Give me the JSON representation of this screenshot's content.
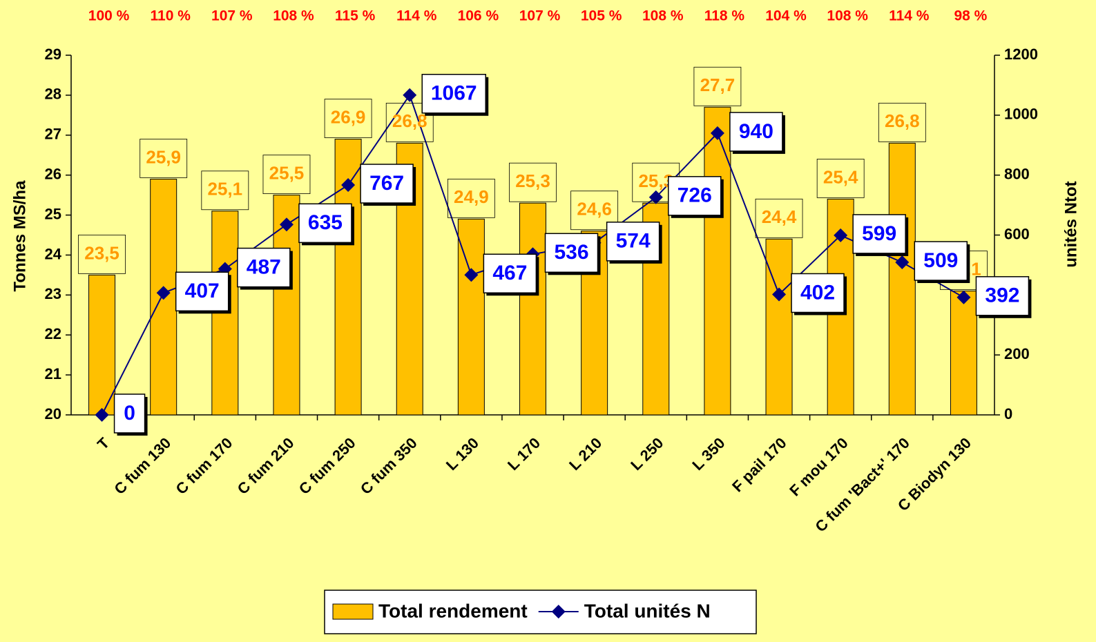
{
  "chart_data": {
    "type": "bar",
    "annotations": [
      "100 %",
      "110 %",
      "107 %",
      "108 %",
      "115 %",
      "114 %",
      "106 %",
      "107 %",
      "105 %",
      "108 %",
      "118 %",
      "104 %",
      "108 %",
      "114 %",
      "98 %"
    ],
    "y_label": "Tonnes MS/ha",
    "y2_label": "unités Ntot",
    "categories": [
      "T",
      "C fum 130",
      "C fum 170",
      "C fum 210",
      "C fum 250",
      "C fum 350",
      "L 130",
      "L 170",
      "L 210",
      "L 250",
      "L 350",
      "F pail 170",
      "F mou 170",
      "C fum 'Bact+' 170",
      "C Biodyn 130"
    ],
    "series": [
      {
        "name": "Total rendement",
        "type": "bar",
        "color": "#ffc000",
        "values": [
          23.5,
          25.9,
          25.1,
          25.5,
          26.9,
          26.8,
          24.9,
          25.3,
          24.6,
          25.3,
          27.7,
          24.4,
          25.4,
          26.8,
          23.1
        ],
        "value_labels": [
          "23,5",
          "25,9",
          "25,1",
          "25,5",
          "26,9",
          "26,8",
          "24,9",
          "25,3",
          "24,6",
          "25,3",
          "27,7",
          "24,4",
          "25,4",
          "26,8",
          "23,1"
        ]
      },
      {
        "name": "Total unités N",
        "type": "line",
        "axis": "y2",
        "color": "#000080",
        "values": [
          0,
          407,
          487,
          635,
          767,
          1067,
          467,
          536,
          574,
          726,
          940,
          402,
          599,
          509,
          392
        ]
      }
    ],
    "ylim": [
      20,
      29
    ],
    "yticks": [
      20,
      21,
      22,
      23,
      24,
      25,
      26,
      27,
      28,
      29
    ],
    "y2lim": [
      0,
      1200
    ],
    "y2ticks": [
      0,
      200,
      400,
      600,
      800,
      1000,
      1200
    ],
    "legend": "bottom"
  }
}
